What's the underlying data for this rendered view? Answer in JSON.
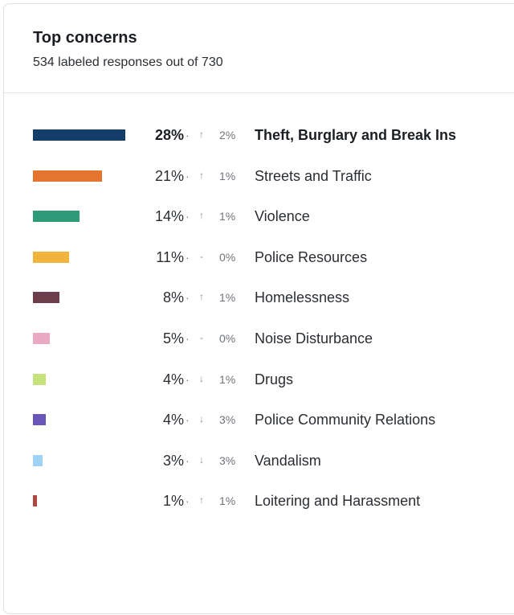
{
  "title": "Top concerns",
  "subtitle": "534 labeled responses out of 730",
  "chart_data": {
    "type": "bar",
    "orientation": "horizontal",
    "categories": [
      "Theft, Burglary and Break Ins",
      "Streets and Traffic",
      "Violence",
      "Police Resources",
      "Homelessness",
      "Noise Disturbance",
      "Drugs",
      "Police Community Relations",
      "Vandalism",
      "Loitering and Harassment"
    ],
    "values": [
      28,
      21,
      14,
      11,
      8,
      5,
      4,
      4,
      3,
      1
    ],
    "value_labels": [
      "28%",
      "21%",
      "14%",
      "11%",
      "8%",
      "5%",
      "4%",
      "4%",
      "3%",
      "1%"
    ],
    "change_direction": [
      "up",
      "up",
      "up",
      "none",
      "up",
      "none",
      "down",
      "down",
      "down",
      "up"
    ],
    "change_labels": [
      "2%",
      "1%",
      "1%",
      "0%",
      "1%",
      "0%",
      "1%",
      "3%",
      "3%",
      "1%"
    ],
    "colors": [
      "#153e6b",
      "#e3752f",
      "#2e9a78",
      "#f0b53d",
      "#6e3d4c",
      "#eaa9c2",
      "#c6e27f",
      "#6a56b8",
      "#9fd3f5",
      "#b0473f"
    ],
    "xlim": [
      0,
      28
    ]
  }
}
